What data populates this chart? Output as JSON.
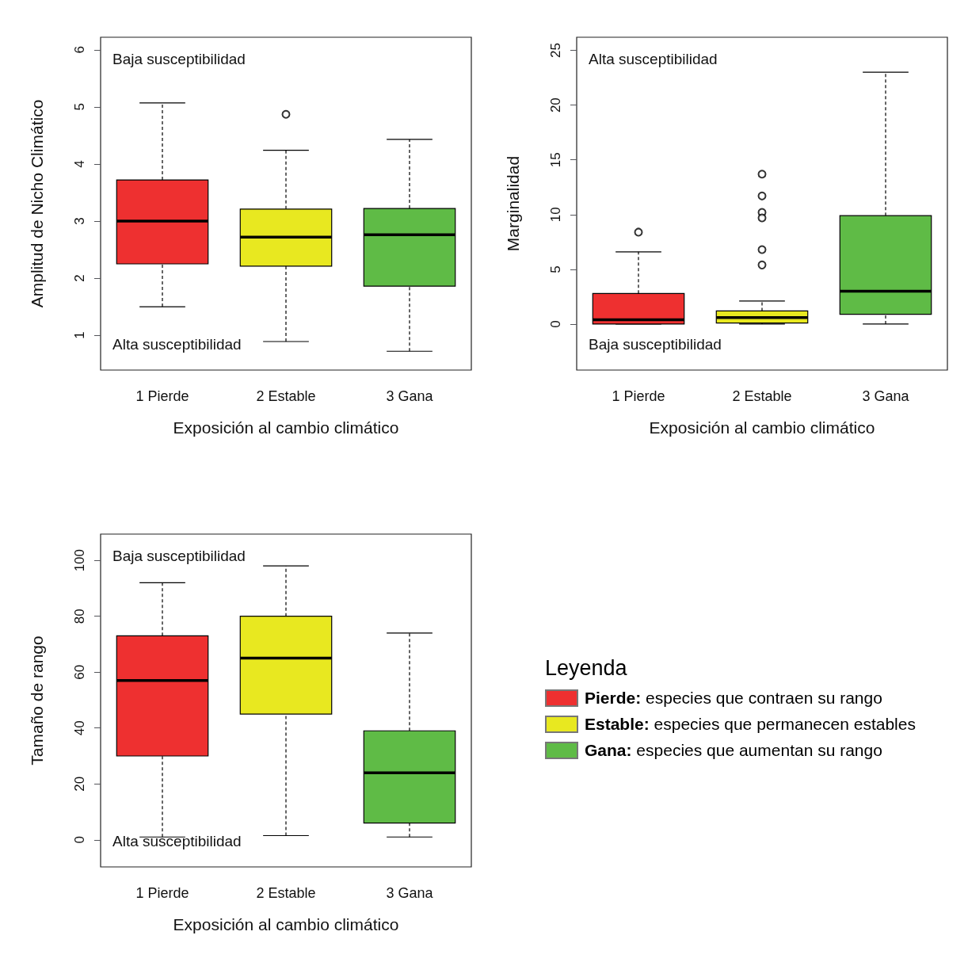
{
  "chart_data": [
    {
      "type": "box",
      "categories": [
        "1 Pierde",
        "2 Estable",
        "3 Gana"
      ],
      "xlabel": "Exposición al cambio climático",
      "ylabel": "Amplitud de Nicho Climático",
      "ylim": [
        0.39,
        6.22
      ],
      "yticks": [
        1,
        2,
        3,
        4,
        5,
        6
      ],
      "grid": false,
      "colors": [
        "#ee3030",
        "#e8e820",
        "#5fbb46"
      ],
      "boxes": [
        {
          "low": 1.5,
          "q1": 2.25,
          "median": 3.0,
          "q3": 3.72,
          "high": 5.07
        },
        {
          "low": 0.89,
          "q1": 2.21,
          "median": 2.72,
          "q3": 3.21,
          "high": 4.24,
          "outliers": [
            4.87
          ]
        },
        {
          "low": 0.72,
          "q1": 1.86,
          "median": 2.76,
          "q3": 3.22,
          "high": 4.43
        }
      ],
      "annotations": [
        "Baja susceptibilidad",
        "Alta susceptibilidad"
      ]
    },
    {
      "type": "box",
      "categories": [
        "1 Pierde",
        "2 Estable",
        "3 Gana"
      ],
      "xlabel": "Exposición al cambio climático",
      "ylabel": "Marginalidad",
      "ylim": [
        -4.2,
        26.2
      ],
      "yticks": [
        0,
        5,
        10,
        15,
        20,
        25
      ],
      "grid": false,
      "colors": [
        "#ee3030",
        "#e8e820",
        "#5fbb46"
      ],
      "boxes": [
        {
          "low": 0,
          "q1": 0,
          "median": 0.4,
          "q3": 2.8,
          "high": 6.6,
          "outliers": [
            8.4
          ]
        },
        {
          "low": 0,
          "q1": 0.1,
          "median": 0.6,
          "q3": 1.2,
          "high": 2.1,
          "outliers": [
            13.7,
            11.7,
            10.2,
            9.7,
            6.8,
            5.4
          ]
        },
        {
          "low": 0,
          "q1": 0.9,
          "median": 3.0,
          "q3": 9.9,
          "high": 23.0
        }
      ],
      "annotations": [
        "Alta susceptibilidad",
        "Baja susceptibilidad"
      ]
    },
    {
      "type": "box",
      "categories": [
        "1 Pierde",
        "2 Estable",
        "3 Gana"
      ],
      "xlabel": "Exposición al cambio climático",
      "ylabel": "Tamaño de rango",
      "ylim": [
        -9.7,
        109.4
      ],
      "yticks": [
        0,
        20,
        40,
        60,
        80,
        100
      ],
      "grid": false,
      "colors": [
        "#ee3030",
        "#e8e820",
        "#5fbb46"
      ],
      "boxes": [
        {
          "low": 1,
          "q1": 30,
          "median": 57,
          "q3": 73,
          "high": 92
        },
        {
          "low": 1.5,
          "q1": 45,
          "median": 65,
          "q3": 80,
          "high": 98
        },
        {
          "low": 1,
          "q1": 6,
          "median": 24,
          "q3": 39,
          "high": 74
        }
      ],
      "annotations": [
        "Baja susceptibilidad",
        "Alta susceptibilidad"
      ]
    },
    {
      "type": "other",
      "title": "Leyenda",
      "series": [
        {
          "name": "Pierde: especies que contraen su rango",
          "color": "#ee3030"
        },
        {
          "name": "Estable: especies que permanecen estables",
          "color": "#e8e820"
        },
        {
          "name": "Gana: especies que aumentan su rango",
          "color": "#5fbb46"
        }
      ]
    }
  ]
}
